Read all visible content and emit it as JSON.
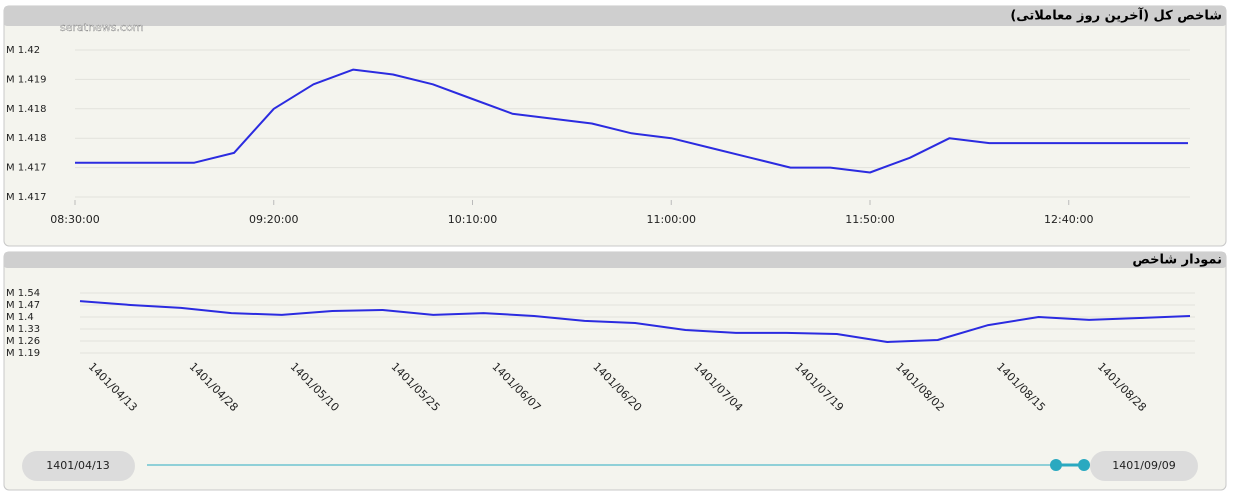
{
  "watermark": "seratnews.com",
  "chart_data": [
    {
      "type": "line",
      "title": "شاخص کل (آخرین روز معاملاتی)",
      "x": [
        510,
        520,
        530,
        540,
        550,
        560,
        570,
        580,
        590,
        600,
        610,
        620,
        630,
        640,
        650,
        660,
        670,
        680,
        690,
        700,
        710,
        720,
        730,
        740,
        750,
        760,
        770,
        780,
        790
      ],
      "series": [
        {
          "name": "شاخص کل",
          "color": "#2b2be0",
          "values": [
            1.4173,
            1.4173,
            1.4173,
            1.4173,
            1.4175,
            1.4184,
            1.4189,
            1.4192,
            1.4191,
            1.4189,
            1.4186,
            1.4183,
            1.4182,
            1.4181,
            1.4179,
            1.4178,
            1.4176,
            1.4174,
            1.4172,
            1.4172,
            1.4171,
            1.4174,
            1.4178,
            1.4177,
            1.4177,
            1.4177,
            1.4177,
            1.4177,
            1.4177
          ]
        }
      ],
      "xlim": [
        510,
        790
      ],
      "xticks": [
        {
          "value": 510,
          "label": "08:30:00"
        },
        {
          "value": 560,
          "label": "09:20:00"
        },
        {
          "value": 610,
          "label": "10:10:00"
        },
        {
          "value": 660,
          "label": "11:00:00"
        },
        {
          "value": 710,
          "label": "11:50:00"
        },
        {
          "value": 760,
          "label": "12:40:00"
        }
      ],
      "ylim": [
        1.4166,
        1.4196
      ],
      "yticks": [
        {
          "value": 1.4196,
          "label": "M 1.42"
        },
        {
          "value": 1.419,
          "label": "M 1.419"
        },
        {
          "value": 1.4184,
          "label": "M 1.418"
        },
        {
          "value": 1.4178,
          "label": "M 1.418"
        },
        {
          "value": 1.4172,
          "label": "M 1.417"
        },
        {
          "value": 1.4166,
          "label": "M 1.417"
        }
      ],
      "grid": true
    },
    {
      "type": "line",
      "title": "نمودار شاخص",
      "categories": [
        "1401/04/13",
        null,
        "1401/04/28",
        null,
        "1401/05/10",
        null,
        "1401/05/25",
        null,
        "1401/06/07",
        null,
        "1401/06/20",
        null,
        "1401/07/04",
        null,
        "1401/07/19",
        null,
        "1401/08/02",
        null,
        "1401/08/15",
        null,
        "1401/08/28",
        null,
        null
      ],
      "series": [
        {
          "name": "نمودار شاخص",
          "color": "#2b2be0",
          "values": [
            1.493,
            1.47,
            1.453,
            1.423,
            1.412,
            1.435,
            1.441,
            1.412,
            1.423,
            1.406,
            1.377,
            1.365,
            1.324,
            1.307,
            1.307,
            1.301,
            1.254,
            1.266,
            1.353,
            1.4,
            1.383,
            1.394,
            1.406
          ]
        }
      ],
      "ylim": [
        1.19,
        1.54
      ],
      "yticks": [
        {
          "value": 1.54,
          "label": "M 1.54"
        },
        {
          "value": 1.47,
          "label": "M 1.47"
        },
        {
          "value": 1.4,
          "label": "M 1.4"
        },
        {
          "value": 1.33,
          "label": "M 1.33"
        },
        {
          "value": 1.26,
          "label": "M 1.26"
        },
        {
          "value": 1.19,
          "label": "M 1.19"
        }
      ],
      "grid": true
    }
  ],
  "range_slider": {
    "start": "1401/04/13",
    "end": "1401/09/09"
  }
}
